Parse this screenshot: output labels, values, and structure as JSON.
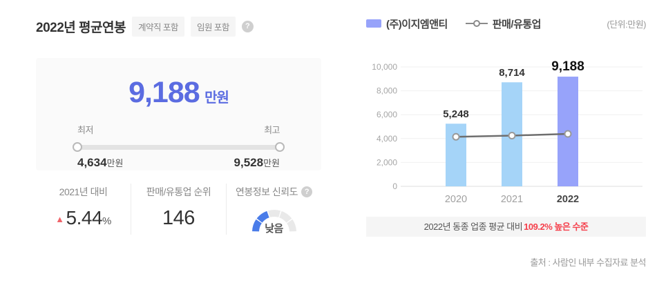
{
  "header": {
    "title": "2022년 평균연봉",
    "badges": [
      "계약직 포함",
      "임원 포함"
    ],
    "help_glyph": "?"
  },
  "salary_card": {
    "value": "9,188",
    "unit": "만원",
    "min_label": "최저",
    "max_label": "최고",
    "min_value": "4,634",
    "min_unit": "만원",
    "max_value": "9,528",
    "max_unit": "만원"
  },
  "stats": {
    "yoy": {
      "label": "2021년 대비",
      "arrow": "▲",
      "value": "5.44",
      "unit": "%"
    },
    "rank": {
      "label": "판매/유통업 순위",
      "value": "146"
    },
    "reliability": {
      "label": "연봉정보 신뢰도",
      "level": "낮음",
      "gauge_percent": 40,
      "segments": 5
    }
  },
  "legend": {
    "company": "(주)이지엠앤티",
    "industry": "판매/유통업",
    "unit_note": "(단위:만원)"
  },
  "chart_data": {
    "type": "bar",
    "categories": [
      "2020",
      "2021",
      "2022"
    ],
    "series": [
      {
        "name": "(주)이지엠앤티",
        "type": "bar",
        "values": [
          5248,
          8714,
          9188
        ]
      },
      {
        "name": "판매/유통업",
        "type": "line",
        "values": [
          4150,
          4250,
          4392
        ]
      }
    ],
    "ylim": [
      0,
      10000
    ],
    "yticks": [
      0,
      2000,
      4000,
      6000,
      8000,
      10000
    ],
    "ylabel": "",
    "xlabel": "",
    "unit": "만원",
    "highlight_index": 2,
    "legend_position": "top",
    "grid": true
  },
  "notice": {
    "prefix": "2022년 동종 업종 평균 대비",
    "highlight": "109.2% 높은 수준"
  },
  "source": "출처 : 사람인 내부 수집자료 분석",
  "colors": {
    "accent_blue": "#5b6ce1",
    "bar_default": "#a5d4f8",
    "bar_highlight": "#97a3fa",
    "line_gray": "#6e6e6e",
    "marker_stroke": "#999999",
    "up_red": "#f0646a",
    "notice_red": "#f5404c",
    "gauge_blue": "#4a7ce9",
    "gauge_gray": "#e9e9e9"
  }
}
